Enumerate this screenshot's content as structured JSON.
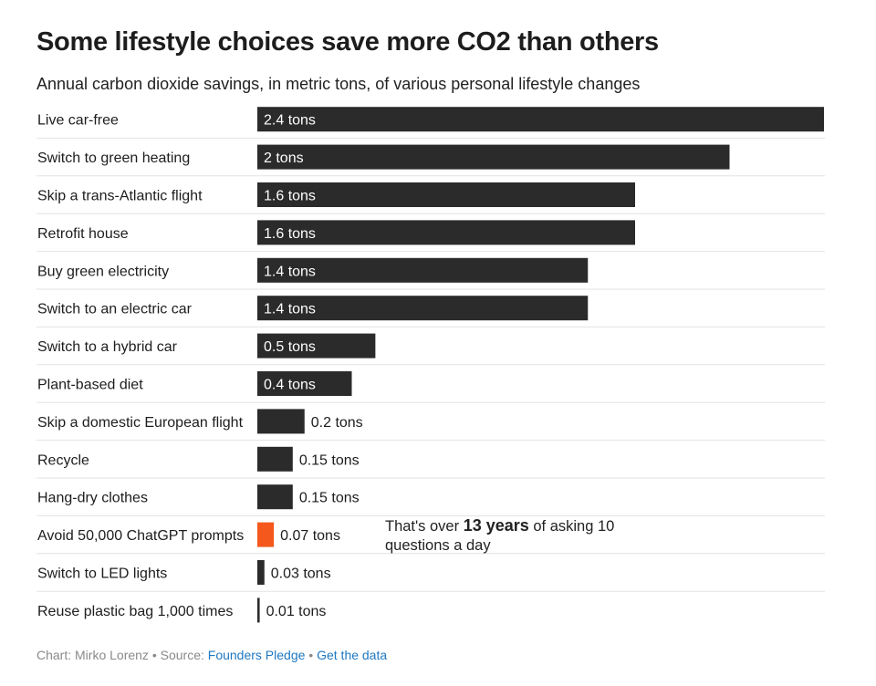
{
  "chart_data": {
    "type": "bar",
    "orientation": "horizontal",
    "title": "Some lifestyle choices save more CO2 than others",
    "subtitle": "Annual carbon dioxide savings, in metric tons, of various personal lifestyle changes",
    "categories": [
      "Live car-free",
      "Switch to green heating",
      "Skip a trans-Atlantic flight",
      "Retrofit house",
      "Buy green electricity",
      "Switch to an electric car",
      "Switch to a hybrid car",
      "Plant-based diet",
      "Skip a domestic European flight",
      "Recycle",
      "Hang-dry clothes",
      "Avoid 50,000 ChatGPT prompts",
      "Switch to LED lights",
      "Reuse plastic bag 1,000 times"
    ],
    "values": [
      2.4,
      2,
      1.6,
      1.6,
      1.4,
      1.4,
      0.5,
      0.4,
      0.2,
      0.15,
      0.15,
      0.07,
      0.03,
      0.01
    ],
    "value_labels": [
      "2.4 tons",
      "2 tons",
      "1.6 tons",
      "1.6 tons",
      "1.4 tons",
      "1.4 tons",
      "0.5 tons",
      "0.4 tons",
      "0.2 tons",
      "0.15 tons",
      "0.15 tons",
      "0.07 tons",
      "0.03 tons",
      "0.01 tons"
    ],
    "highlight_index": 11,
    "xlim": [
      0,
      2.4
    ],
    "unit": "metric tons"
  },
  "colors": {
    "bar": "#2b2b2b",
    "highlight": "#f4581c",
    "divider": "#e3e3e3",
    "link": "#1e78c2"
  },
  "annotation": {
    "prefix": "That's over ",
    "highlight": "13 years",
    "suffix": " of asking 10 questions a day"
  },
  "footer": {
    "credit": "Chart: Mirko Lorenz",
    "separator": "•",
    "source_label": "Source:",
    "source_link": "Founders Pledge",
    "data_link": "Get the data"
  }
}
